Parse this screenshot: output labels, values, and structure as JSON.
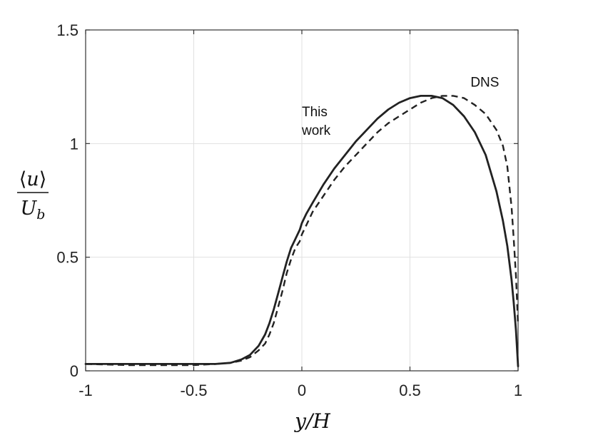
{
  "chart_data": {
    "type": "line",
    "xlabel": "y/H",
    "ylabel": {
      "numerator_left": "⟨",
      "numerator_var": "u",
      "numerator_right": "⟩",
      "denominator_var": "U",
      "denominator_sub": "b"
    },
    "xlim": [
      -1,
      1
    ],
    "ylim": [
      0,
      1.5
    ],
    "xticks": [
      -1,
      -0.5,
      0,
      0.5,
      1
    ],
    "xtick_labels": [
      "-1",
      "-0.5",
      "0",
      "0.5",
      "1"
    ],
    "yticks": [
      0,
      0.5,
      1,
      1.5
    ],
    "ytick_labels": [
      "0",
      "0.5",
      "1",
      "1.5"
    ],
    "grid": true,
    "colors": {
      "line": "#222222",
      "grid": "#e0e0e0",
      "axis": "#333333"
    },
    "series": [
      {
        "style": "solid",
        "x": [
          -1.0,
          -0.8,
          -0.6,
          -0.5,
          -0.4,
          -0.33,
          -0.28,
          -0.24,
          -0.2,
          -0.17,
          -0.15,
          -0.13,
          -0.11,
          -0.09,
          -0.07,
          -0.05,
          -0.03,
          -0.01,
          0.0,
          0.02,
          0.05,
          0.1,
          0.15,
          0.2,
          0.25,
          0.3,
          0.35,
          0.4,
          0.45,
          0.5,
          0.55,
          0.6,
          0.65,
          0.7,
          0.75,
          0.8,
          0.85,
          0.9,
          0.93,
          0.95,
          0.97,
          0.98,
          0.99,
          1.0
        ],
        "y": [
          0.03,
          0.03,
          0.03,
          0.03,
          0.03,
          0.035,
          0.05,
          0.07,
          0.11,
          0.16,
          0.21,
          0.27,
          0.34,
          0.41,
          0.48,
          0.54,
          0.58,
          0.62,
          0.65,
          0.69,
          0.74,
          0.82,
          0.89,
          0.95,
          1.01,
          1.06,
          1.11,
          1.15,
          1.18,
          1.2,
          1.21,
          1.21,
          1.2,
          1.17,
          1.12,
          1.05,
          0.95,
          0.79,
          0.66,
          0.55,
          0.4,
          0.3,
          0.18,
          0.02
        ]
      },
      {
        "style": "dashed",
        "x": [
          -1.0,
          -0.8,
          -0.6,
          -0.5,
          -0.4,
          -0.33,
          -0.28,
          -0.24,
          -0.2,
          -0.17,
          -0.15,
          -0.13,
          -0.11,
          -0.09,
          -0.07,
          -0.05,
          -0.03,
          -0.01,
          0.0,
          0.02,
          0.05,
          0.1,
          0.15,
          0.2,
          0.25,
          0.3,
          0.35,
          0.4,
          0.45,
          0.5,
          0.55,
          0.6,
          0.65,
          0.7,
          0.75,
          0.8,
          0.85,
          0.9,
          0.93,
          0.95,
          0.97,
          0.98,
          0.99,
          1.0
        ],
        "y": [
          0.03,
          0.025,
          0.025,
          0.025,
          0.03,
          0.035,
          0.045,
          0.06,
          0.09,
          0.12,
          0.16,
          0.21,
          0.28,
          0.35,
          0.43,
          0.49,
          0.54,
          0.57,
          0.6,
          0.64,
          0.7,
          0.77,
          0.84,
          0.9,
          0.95,
          1.0,
          1.05,
          1.09,
          1.12,
          1.15,
          1.18,
          1.2,
          1.21,
          1.21,
          1.2,
          1.17,
          1.13,
          1.06,
          0.99,
          0.9,
          0.72,
          0.58,
          0.42,
          0.2
        ]
      }
    ],
    "annotations": [
      {
        "text_lines": [
          "This",
          "work"
        ],
        "x": 0.0,
        "y": 1.12
      },
      {
        "text_lines": [
          "DNS"
        ],
        "x": 0.78,
        "y": 1.25
      }
    ]
  }
}
